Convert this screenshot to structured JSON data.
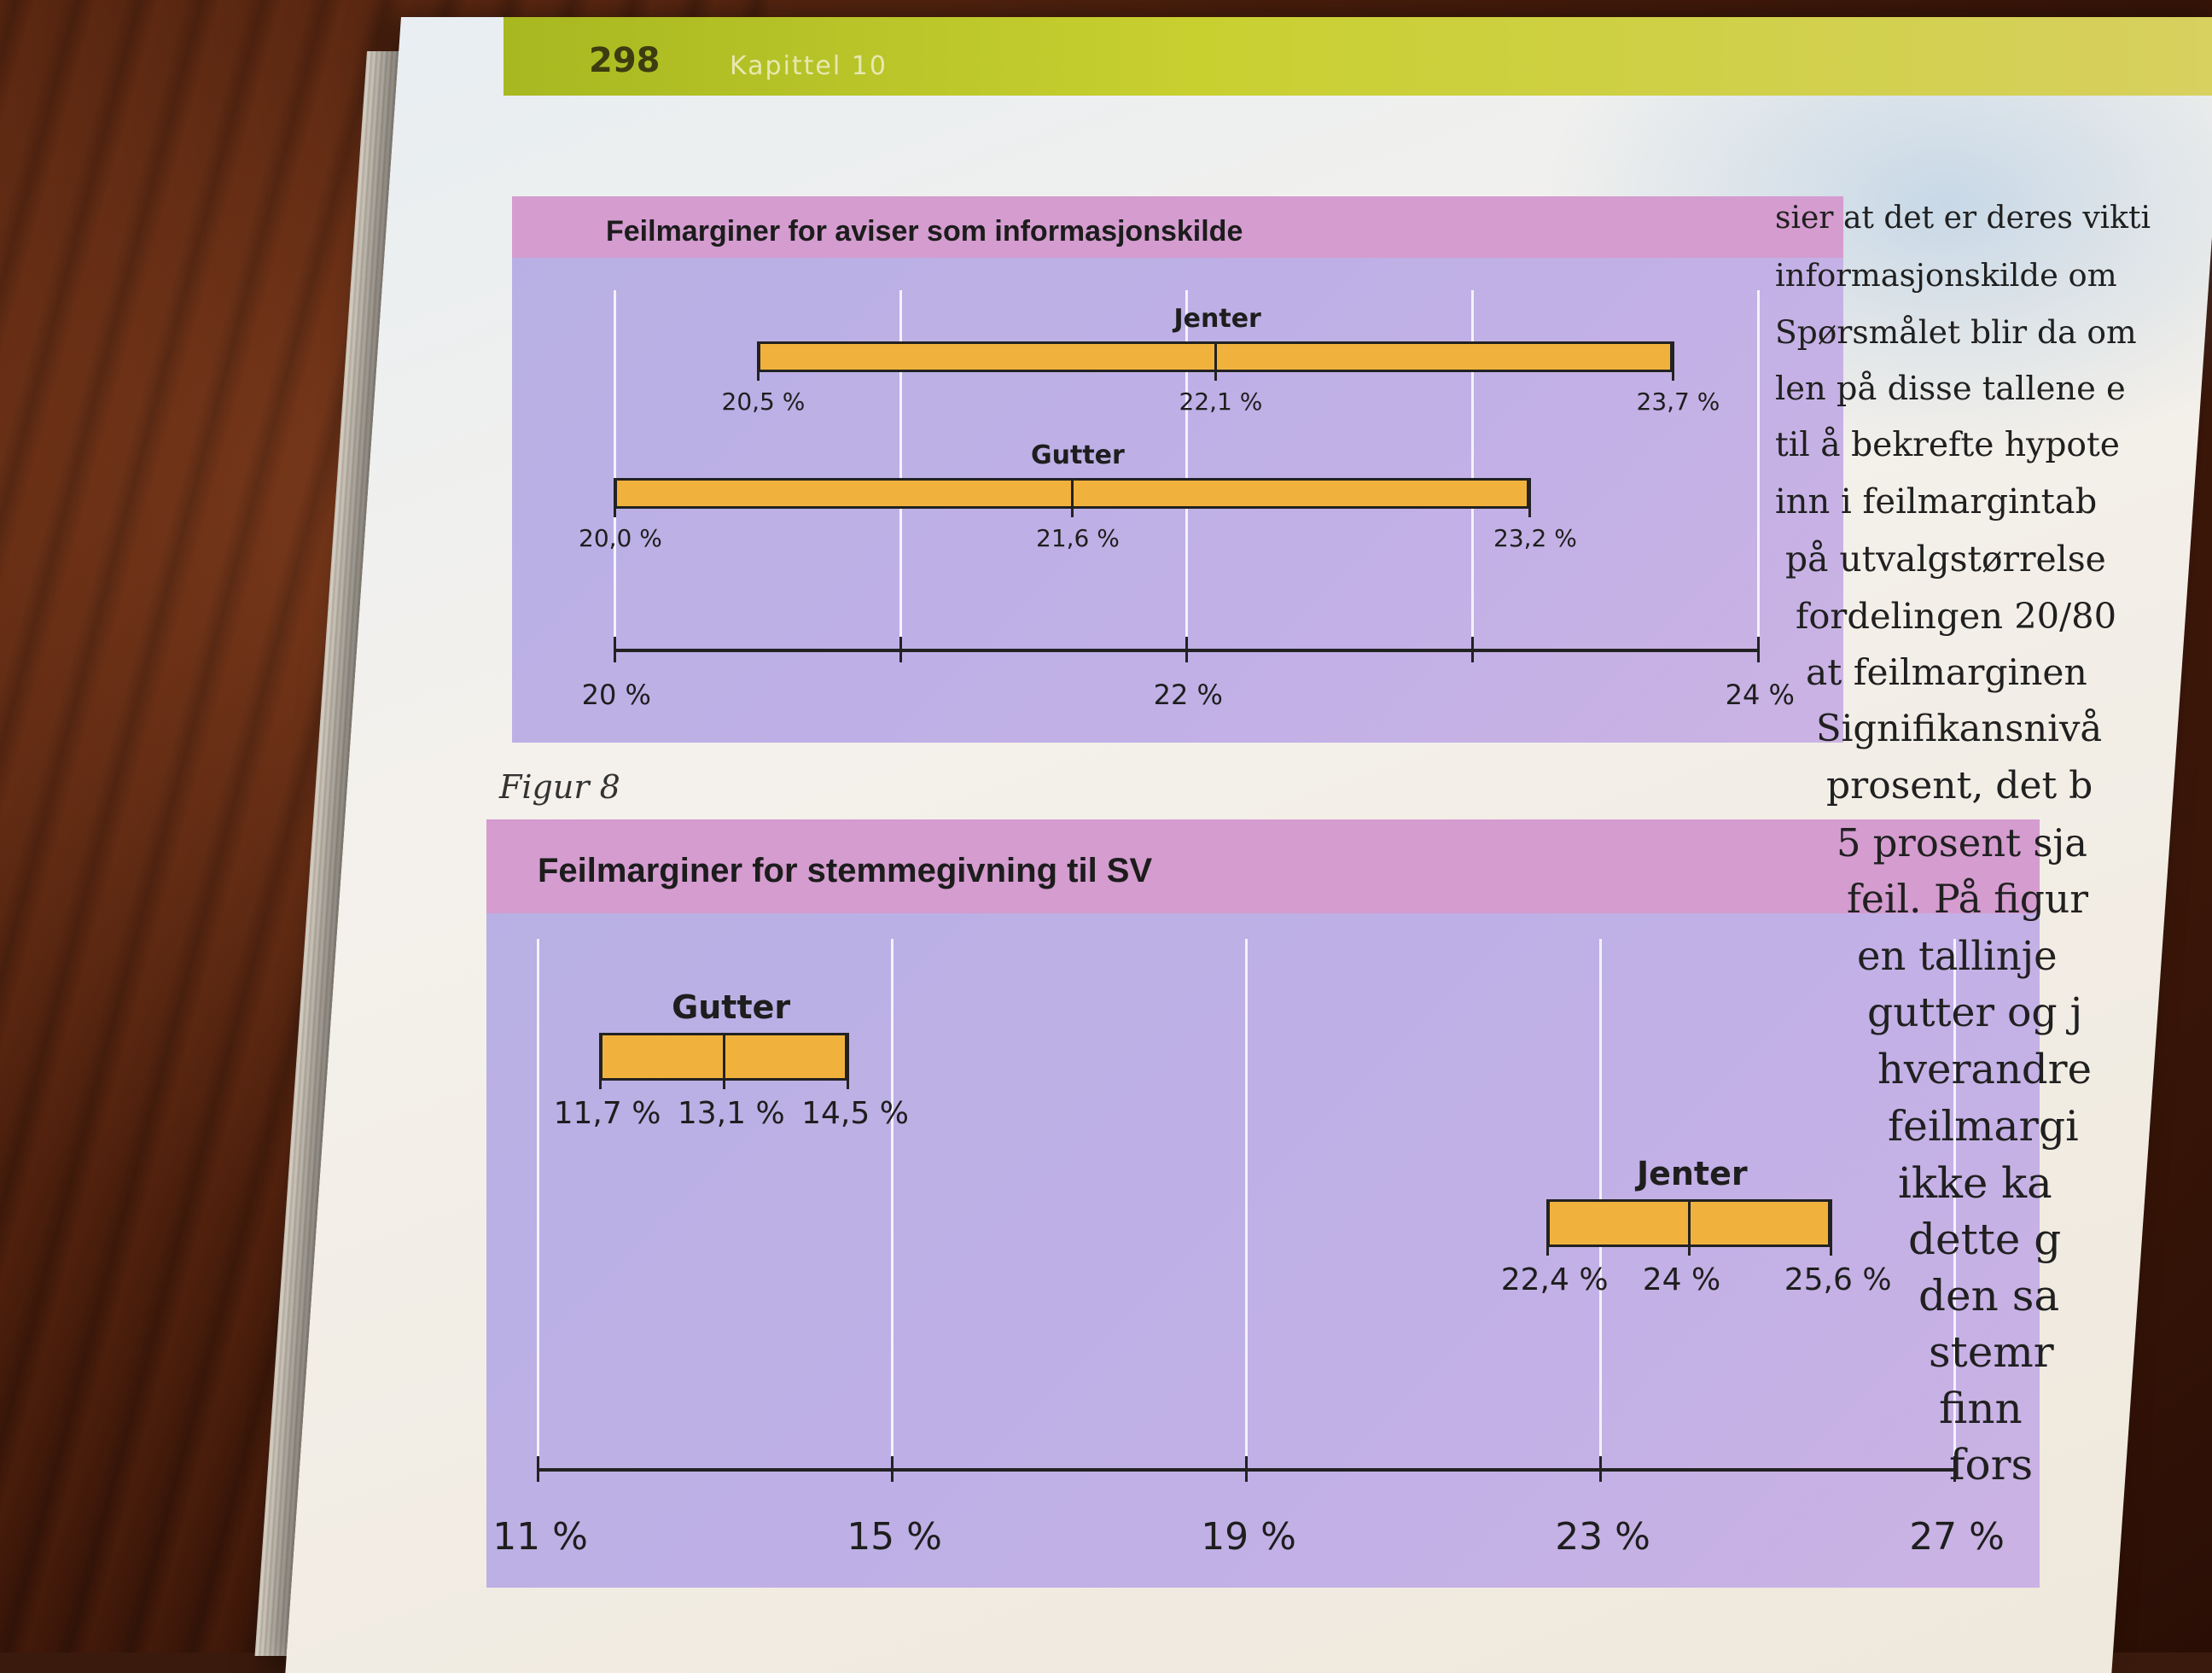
{
  "header": {
    "page_number": "298",
    "chapter": "Kapittel 10"
  },
  "figure_top": {
    "title": "Feilmarginer for aviser som informasjonskilde",
    "bars": [
      {
        "name": "Jenter",
        "low": "20,5 %",
        "mid": "22,1 %",
        "high": "23,7 %"
      },
      {
        "name": "Gutter",
        "low": "20,0 %",
        "mid": "21,6 %",
        "high": "23,2 %"
      }
    ],
    "axis_labels": [
      "20 %",
      "22 %",
      "24 %"
    ]
  },
  "caption_top": "Figur 8",
  "figure_bottom": {
    "title": "Feilmarginer for stemmegivning til SV",
    "bars": [
      {
        "name": "Gutter",
        "low": "11,7 %",
        "mid": "13,1 %",
        "high": "14,5 %"
      },
      {
        "name": "Jenter",
        "low": "22,4 %",
        "mid": "24 %",
        "high": "25,6 %"
      }
    ],
    "axis_labels": [
      "11 %",
      "15 %",
      "19 %",
      "23 %",
      "27 %"
    ]
  },
  "body_lines": [
    "sier at det er deres vikti",
    "informasjonskilde om",
    "Spørsmålet blir da om",
    "len på disse tallene e",
    "til å bekrefte hypote",
    "inn i feilmargintab",
    "på utvalgstørrelse",
    "fordelingen 20/80",
    "at feilmarginen",
    "Signifikansnivå",
    "prosent, det b",
    "5 prosent sja",
    "feil. På figur",
    "en tallinje",
    "gutter og j",
    "hverandre",
    "feilmargi",
    "ikke ka",
    "dette g",
    "den sa",
    "stemr",
    "finn",
    "fors"
  ],
  "chart_data": [
    {
      "type": "bar",
      "title": "Feilmarginer for aviser som informasjonskilde",
      "xlim": [
        20,
        24
      ],
      "x_ticks": [
        20,
        21,
        22,
        23,
        24
      ],
      "series": [
        {
          "name": "Jenter",
          "low": 20.5,
          "mid": 22.1,
          "high": 23.7
        },
        {
          "name": "Gutter",
          "low": 20.0,
          "mid": 21.6,
          "high": 23.2
        }
      ]
    },
    {
      "type": "bar",
      "title": "Feilmarginer for stemmegivning til SV",
      "xlim": [
        11,
        27
      ],
      "x_ticks": [
        11,
        15,
        19,
        23,
        27
      ],
      "series": [
        {
          "name": "Gutter",
          "low": 11.7,
          "mid": 13.1,
          "high": 14.5
        },
        {
          "name": "Jenter",
          "low": 22.4,
          "mid": 24,
          "high": 25.6
        }
      ]
    }
  ]
}
